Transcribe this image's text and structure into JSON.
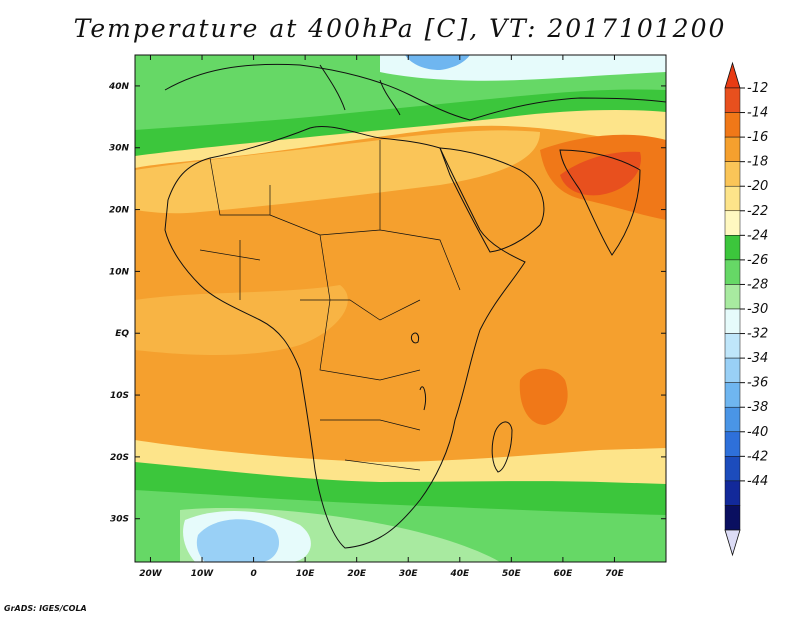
{
  "title": "Temperature at 400hPa [C], VT: 2017101200",
  "credit": "GrADS: IGES/COLA",
  "lat_labels": [
    "40N",
    "30N",
    "20N",
    "10N",
    "EQ",
    "10S",
    "20S",
    "30S"
  ],
  "lat_values": [
    40,
    30,
    20,
    10,
    0,
    -10,
    -20,
    -30
  ],
  "lon_labels": [
    "20W",
    "10W",
    "0",
    "10E",
    "20E",
    "30E",
    "40E",
    "50E",
    "60E",
    "70E"
  ],
  "lon_values": [
    -20,
    -10,
    0,
    10,
    20,
    30,
    40,
    50,
    60,
    70
  ],
  "extent": {
    "lon_min": -23,
    "lon_max": 80,
    "lat_min": -37,
    "lat_max": 45
  },
  "colorbar": {
    "labels": [
      "-12",
      "-14",
      "-16",
      "-18",
      "-20",
      "-22",
      "-24",
      "-26",
      "-28",
      "-30",
      "-32",
      "-34",
      "-36",
      "-38",
      "-40",
      "-42",
      "-44"
    ],
    "colors": [
      "#e8501e",
      "#f07818",
      "#f5a02e",
      "#fac558",
      "#fde48a",
      "#fff8c0",
      "#3cc63c",
      "#66d866",
      "#a8eaa0",
      "#e6fbfb",
      "#bfe6fa",
      "#99d0f6",
      "#6fb6f0",
      "#4a95e6",
      "#2e70da",
      "#1c4cbc",
      "#12299a",
      "#0a0f60"
    ],
    "top_color": "#e83c14",
    "bottom_color": "#dcdcf6"
  },
  "colors": {
    "coast": "#111111",
    "frame": "#111111"
  }
}
